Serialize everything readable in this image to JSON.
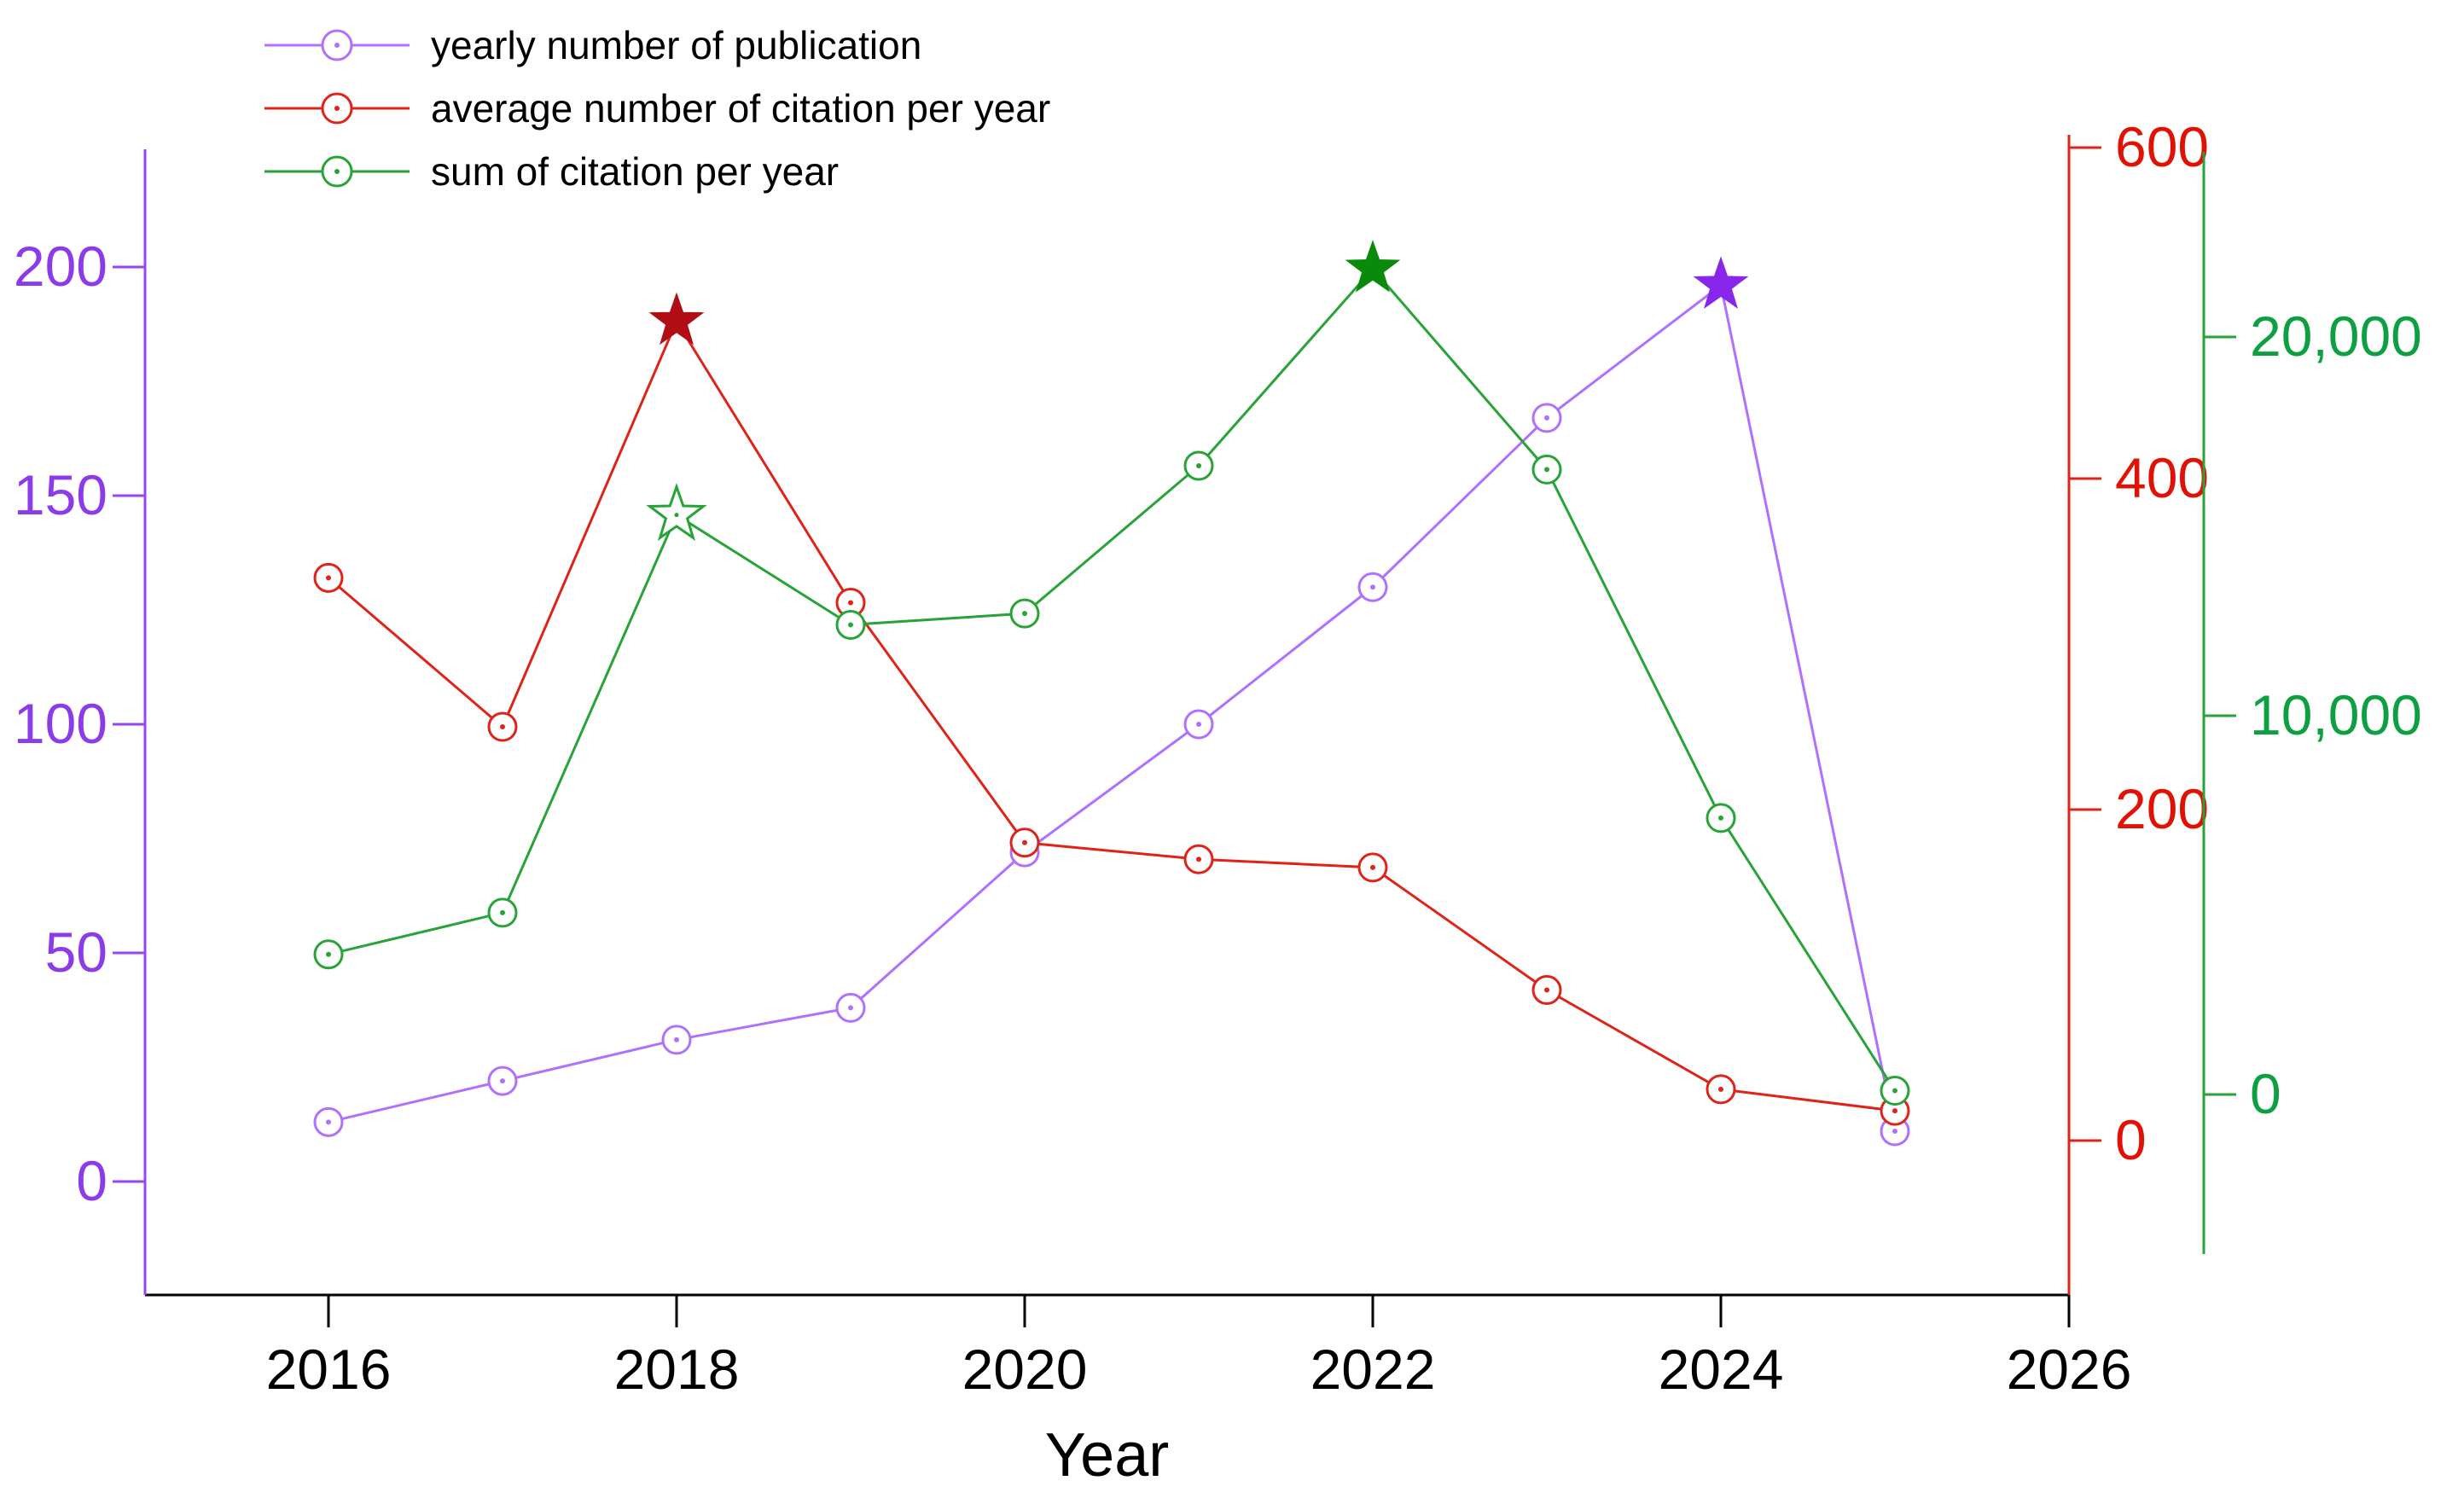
{
  "chart_data": {
    "type": "line",
    "title": "",
    "xlabel": "Year",
    "grid": false,
    "legend_position": "top-left",
    "years": [
      2016,
      2017,
      2018,
      2019,
      2020,
      2021,
      2022,
      2023,
      2024,
      2025
    ],
    "x_axis": {
      "tick_years": [
        2016,
        2018,
        2020,
        2022,
        2024,
        2026
      ],
      "tick_labels": [
        "2016",
        "2018",
        "2020",
        "2022",
        "2024",
        "2026"
      ],
      "label": "Year",
      "color": "#000000"
    },
    "axes": {
      "left": {
        "name": "yearly number of publication",
        "tick_values": [
          0,
          50,
          100,
          150,
          200
        ],
        "tick_labels": [
          "0",
          "50",
          "100",
          "150",
          "200"
        ],
        "axis_color": "#9945F5",
        "text_color": "#8B3BE8"
      },
      "right_avg": {
        "name": "average number of citation per year",
        "tick_values": [
          0,
          200,
          400,
          600
        ],
        "tick_labels": [
          "0",
          "200",
          "400",
          "600"
        ],
        "axis_color": "#E02319",
        "text_color": "#E01205"
      },
      "right_sum": {
        "name": "sum of citation per year",
        "tick_values": [
          0,
          10000,
          20000
        ],
        "tick_labels": [
          "0",
          "10,000",
          "20,000"
        ],
        "axis_color": "#27A337",
        "text_color": "#0CA041"
      }
    },
    "series": [
      {
        "id": "publications",
        "name": "yearly number of publication",
        "axis": "left",
        "color": "#B070FF",
        "star_color": "#8826EB",
        "values": [
          13,
          22,
          31,
          38,
          72,
          100,
          130,
          167,
          196,
          11
        ],
        "special_markers": [
          {
            "year": 2024,
            "type": "star-filled"
          }
        ]
      },
      {
        "id": "avg-citation",
        "name": "average number of citation per year",
        "axis": "right_avg",
        "color": "#E02319",
        "star_color": "#B00E14",
        "values": [
          340,
          250,
          495,
          325,
          180,
          170,
          165,
          91,
          31,
          18
        ],
        "special_markers": [
          {
            "year": 2018,
            "type": "star-filled"
          }
        ]
      },
      {
        "id": "sum-citation",
        "name": "sum of citation per year",
        "axis": "right_sum",
        "color": "#27A337",
        "star_color": "#0A8A0A",
        "values": [
          3700,
          4800,
          15300,
          12400,
          12700,
          16600,
          21800,
          16500,
          7300,
          100
        ],
        "special_markers": [
          {
            "year": 2018,
            "type": "star-open"
          },
          {
            "year": 2022,
            "type": "star-filled"
          }
        ]
      }
    ]
  }
}
